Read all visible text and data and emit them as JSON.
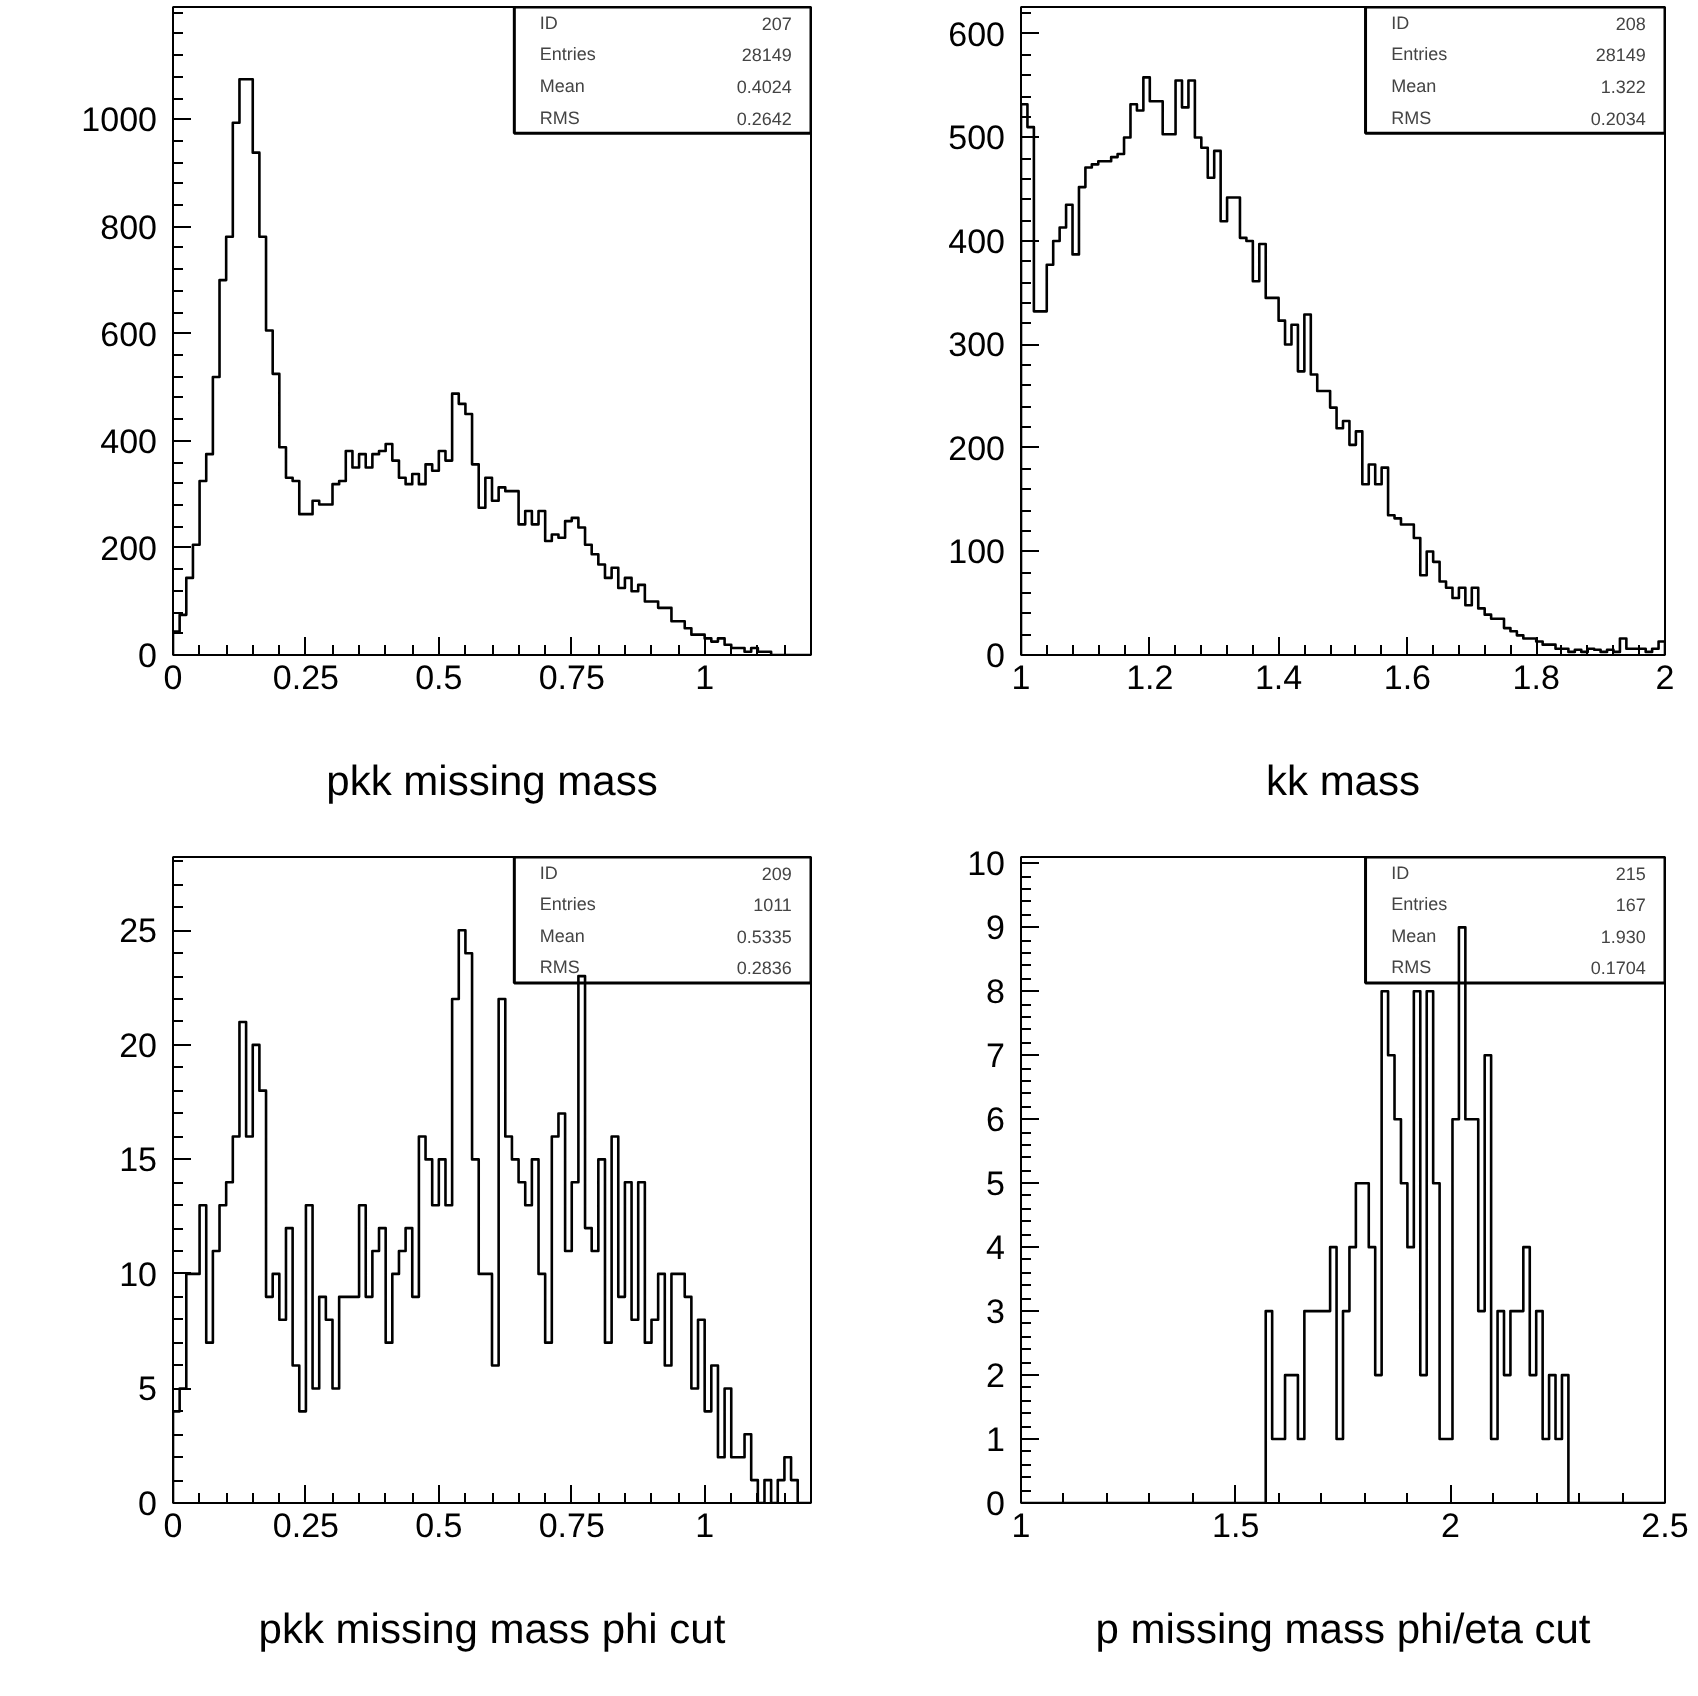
{
  "chart_data": [
    {
      "type": "histogram",
      "xlabel": "pkk missing mass",
      "color": "#000000",
      "xlim": [
        0,
        1.2
      ],
      "ylim": [
        0,
        1210
      ],
      "xticks": [
        0,
        0.25,
        0.5,
        0.75,
        1
      ],
      "yticks": [
        0,
        200,
        400,
        600,
        800,
        1000
      ],
      "annotations": [
        "ID 207",
        "Entries 28149",
        "Mean 0.4024",
        "RMS 0.2642"
      ],
      "bins": [
        0,
        0.0125,
        0.025,
        0.0375,
        0.05,
        0.0625,
        0.075,
        0.0875,
        0.1,
        0.1125,
        0.125,
        0.1375,
        0.15,
        0.1625,
        0.175,
        0.1875,
        0.2,
        0.2125,
        0.225,
        0.2375,
        0.25,
        0.2625,
        0.275,
        0.2875,
        0.3,
        0.3125,
        0.325,
        0.3375,
        0.35,
        0.3625,
        0.375,
        0.3875,
        0.4,
        0.4125,
        0.425,
        0.4375,
        0.45,
        0.4625,
        0.475,
        0.4875,
        0.5,
        0.5125,
        0.525,
        0.5375,
        0.55,
        0.5625,
        0.575,
        0.5875,
        0.6,
        0.6125,
        0.625,
        0.6375,
        0.65,
        0.6625,
        0.675,
        0.6875,
        0.7,
        0.7125,
        0.725,
        0.7375,
        0.75,
        0.7625,
        0.775,
        0.7875,
        0.8,
        0.8125,
        0.825,
        0.8375,
        0.85,
        0.8625,
        0.875,
        0.8875,
        0.9,
        0.9125,
        0.925,
        0.9375,
        0.95,
        0.9625,
        0.975,
        0.9875,
        1.0,
        1.0125,
        1.025,
        1.0375,
        1.05,
        1.0625,
        1.075,
        1.0875,
        1.1,
        1.1125,
        1.125,
        1.1375,
        1.15,
        1.1625,
        1.175,
        1.1875,
        1.2
      ],
      "values": [
        44,
        75,
        144,
        206,
        325,
        375,
        519,
        700,
        781,
        994,
        1075,
        1075,
        938,
        781,
        606,
        525,
        388,
        331,
        325,
        263,
        263,
        288,
        281,
        281,
        319,
        325,
        381,
        350,
        375,
        350,
        375,
        381,
        394,
        363,
        331,
        319,
        338,
        319,
        356,
        344,
        381,
        363,
        488,
        469,
        450,
        356,
        275,
        331,
        288,
        313,
        306,
        306,
        244,
        269,
        244,
        269,
        213,
        225,
        219,
        250,
        256,
        238,
        206,
        188,
        169,
        144,
        163,
        125,
        144,
        119,
        131,
        100,
        100,
        88,
        88,
        63,
        63,
        50,
        38,
        38,
        31,
        25,
        31,
        19,
        13,
        13,
        6,
        13,
        6,
        6,
        0,
        0,
        0,
        0,
        0,
        0
      ]
    },
    {
      "type": "histogram",
      "xlabel": "kk mass",
      "color": "#000000",
      "xlim": [
        1,
        2
      ],
      "ylim": [
        0,
        626
      ],
      "xticks": [
        1,
        1.2,
        1.4,
        1.6,
        1.8,
        2
      ],
      "yticks": [
        0,
        100,
        200,
        300,
        400,
        500,
        600
      ],
      "annotations": [
        "ID 208",
        "Entries 28149",
        "Mean 1.322",
        "RMS 0.2034"
      ],
      "bins": [
        1,
        1.01,
        1.02,
        1.03,
        1.04,
        1.05,
        1.06,
        1.07,
        1.08,
        1.09,
        1.1,
        1.11,
        1.12,
        1.13,
        1.14,
        1.15,
        1.16,
        1.17,
        1.18,
        1.19,
        1.2,
        1.21,
        1.22,
        1.23,
        1.24,
        1.25,
        1.26,
        1.27,
        1.28,
        1.29,
        1.3,
        1.31,
        1.32,
        1.33,
        1.34,
        1.35,
        1.36,
        1.37,
        1.38,
        1.39,
        1.4,
        1.41,
        1.42,
        1.43,
        1.44,
        1.45,
        1.46,
        1.47,
        1.48,
        1.49,
        1.5,
        1.51,
        1.52,
        1.53,
        1.54,
        1.55,
        1.56,
        1.57,
        1.58,
        1.59,
        1.6,
        1.61,
        1.62,
        1.63,
        1.64,
        1.65,
        1.66,
        1.67,
        1.68,
        1.69,
        1.7,
        1.71,
        1.72,
        1.73,
        1.74,
        1.75,
        1.76,
        1.77,
        1.78,
        1.79,
        1.8,
        1.81,
        1.82,
        1.83,
        1.84,
        1.85,
        1.86,
        1.87,
        1.88,
        1.89,
        1.9,
        1.91,
        1.92,
        1.93,
        1.94,
        1.95,
        1.96,
        1.97,
        1.98,
        1.99,
        2
      ],
      "values": [
        532,
        510,
        332,
        332,
        377,
        400,
        413,
        435,
        387,
        452,
        471,
        474,
        477,
        477,
        481,
        484,
        500,
        532,
        526,
        558,
        535,
        535,
        503,
        503,
        555,
        529,
        555,
        500,
        490,
        461,
        487,
        419,
        442,
        442,
        403,
        400,
        361,
        397,
        345,
        345,
        323,
        300,
        319,
        274,
        329,
        271,
        255,
        255,
        239,
        219,
        226,
        203,
        216,
        165,
        184,
        165,
        181,
        135,
        132,
        126,
        126,
        113,
        77,
        100,
        90,
        71,
        65,
        55,
        65,
        48,
        65,
        45,
        39,
        35,
        35,
        26,
        23,
        19,
        16,
        16,
        13,
        10,
        10,
        6,
        6,
        3,
        5,
        3,
        6,
        5,
        3,
        5,
        3,
        16,
        6,
        6,
        6,
        3,
        6,
        13
      ]
    },
    {
      "type": "histogram",
      "xlabel": "pkk missing mass phi cut",
      "color": "#000000",
      "xlim": [
        0,
        1.2
      ],
      "ylim": [
        0,
        28.2
      ],
      "xticks": [
        0,
        0.25,
        0.5,
        0.75,
        1
      ],
      "yticks": [
        0,
        5,
        10,
        15,
        20,
        25
      ],
      "annotations": [
        "ID 209",
        "Entries 1011",
        "Mean 0.5335",
        "RMS 0.2836"
      ],
      "bins": [
        0,
        0.0125,
        0.025,
        0.0375,
        0.05,
        0.0625,
        0.075,
        0.0875,
        0.1,
        0.1125,
        0.125,
        0.1375,
        0.15,
        0.1625,
        0.175,
        0.1875,
        0.2,
        0.2125,
        0.225,
        0.2375,
        0.25,
        0.2625,
        0.275,
        0.2875,
        0.3,
        0.3125,
        0.325,
        0.3375,
        0.35,
        0.3625,
        0.375,
        0.3875,
        0.4,
        0.4125,
        0.425,
        0.4375,
        0.45,
        0.4625,
        0.475,
        0.4875,
        0.5,
        0.5125,
        0.525,
        0.5375,
        0.55,
        0.5625,
        0.575,
        0.5875,
        0.6,
        0.6125,
        0.625,
        0.6375,
        0.65,
        0.6625,
        0.675,
        0.6875,
        0.7,
        0.7125,
        0.725,
        0.7375,
        0.75,
        0.7625,
        0.775,
        0.7875,
        0.8,
        0.8125,
        0.825,
        0.8375,
        0.85,
        0.8625,
        0.875,
        0.8875,
        0.9,
        0.9125,
        0.925,
        0.9375,
        0.95,
        0.9625,
        0.975,
        0.9875,
        1.0,
        1.0125,
        1.025,
        1.0375,
        1.05,
        1.0625,
        1.075,
        1.0875,
        1.1,
        1.1125,
        1.125,
        1.1375,
        1.15,
        1.1625,
        1.175,
        1.1875,
        1.2
      ],
      "values": [
        4,
        5,
        10,
        10,
        13,
        7,
        11,
        13,
        14,
        16,
        21,
        16,
        20,
        18,
        9,
        10,
        8,
        12,
        6,
        4,
        13,
        5,
        9,
        8,
        5,
        9,
        9,
        9,
        13,
        9,
        11,
        12,
        7,
        10,
        11,
        12,
        9,
        16,
        15,
        13,
        15,
        13,
        22,
        25,
        24,
        15,
        10,
        10,
        6,
        22,
        16,
        15,
        14,
        13,
        15,
        10,
        7,
        16,
        17,
        11,
        14,
        23,
        12,
        11,
        15,
        7,
        16,
        9,
        14,
        8,
        14,
        7,
        8,
        10,
        6,
        10,
        10,
        9,
        5,
        8,
        4,
        6,
        2,
        5,
        2,
        2,
        3,
        1,
        0,
        1,
        0,
        1,
        2,
        1,
        0,
        0
      ]
    },
    {
      "type": "histogram",
      "xlabel": "p missing mass phi/eta cut",
      "color": "#000000",
      "xlim": [
        1,
        2.5
      ],
      "ylim": [
        0,
        10.1
      ],
      "xticks": [
        1,
        1.5,
        2,
        2.5
      ],
      "yticks": [
        0,
        1,
        2,
        3,
        4,
        5,
        6,
        7,
        8,
        9,
        10
      ],
      "annotations": [
        "ID 215",
        "Entries 167",
        "Mean 1.930",
        "RMS 0.1704"
      ],
      "bins": [
        1,
        1.015,
        1.03,
        1.045,
        1.06,
        1.075,
        1.09,
        1.105,
        1.12,
        1.135,
        1.15,
        1.165,
        1.18,
        1.195,
        1.21,
        1.225,
        1.24,
        1.255,
        1.27,
        1.285,
        1.3,
        1.315,
        1.33,
        1.345,
        1.36,
        1.375,
        1.39,
        1.405,
        1.42,
        1.435,
        1.45,
        1.465,
        1.48,
        1.495,
        1.51,
        1.525,
        1.54,
        1.555,
        1.57,
        1.585,
        1.6,
        1.615,
        1.63,
        1.645,
        1.66,
        1.675,
        1.69,
        1.705,
        1.72,
        1.735,
        1.75,
        1.765,
        1.78,
        1.795,
        1.81,
        1.825,
        1.84,
        1.855,
        1.87,
        1.885,
        1.9,
        1.915,
        1.93,
        1.945,
        1.96,
        1.975,
        1.99,
        2.005,
        2.02,
        2.035,
        2.05,
        2.065,
        2.08,
        2.095,
        2.11,
        2.125,
        2.14,
        2.155,
        2.17,
        2.185,
        2.2,
        2.215,
        2.23,
        2.245,
        2.26,
        2.275,
        2.29,
        2.305,
        2.32,
        2.335,
        2.35,
        2.365,
        2.38,
        2.395,
        2.41,
        2.425,
        2.44,
        2.455,
        2.47,
        2.485,
        2.5
      ],
      "values": [
        0,
        0,
        0,
        0,
        0,
        0,
        0,
        0,
        0,
        0,
        0,
        0,
        0,
        0,
        0,
        0,
        0,
        0,
        0,
        0,
        0,
        0,
        0,
        0,
        0,
        0,
        0,
        0,
        0,
        0,
        0,
        0,
        0,
        0,
        0,
        0,
        0,
        0,
        3,
        1,
        1,
        2,
        2,
        1,
        3,
        3,
        3,
        3,
        4,
        1,
        3,
        4,
        5,
        5,
        4,
        2,
        8,
        7,
        6,
        5,
        4,
        8,
        2,
        8,
        5,
        1,
        1,
        6,
        9,
        6,
        6,
        3,
        7,
        1,
        3,
        2,
        3,
        3,
        4,
        2,
        3,
        1,
        2,
        1,
        2,
        0,
        0,
        0,
        0,
        0,
        0,
        0,
        0,
        0,
        0,
        0,
        0,
        0,
        0,
        0
      ]
    }
  ]
}
